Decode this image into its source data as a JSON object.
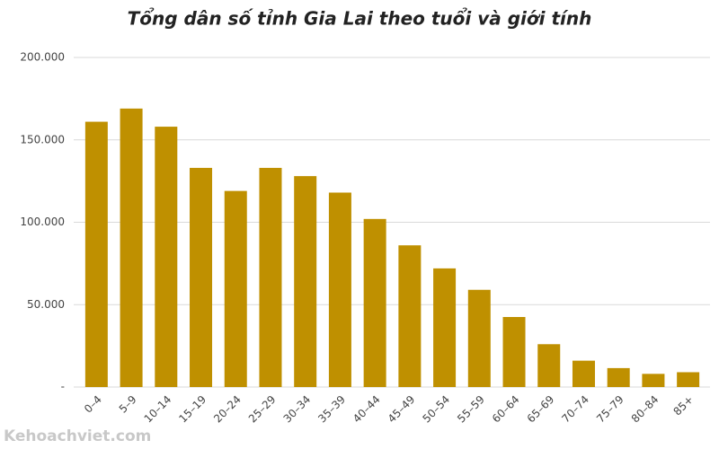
{
  "chart_data": {
    "type": "bar",
    "title": "Tổng dân số tỉnh Gia Lai theo tuổi và giới tính",
    "categories": [
      "0–4",
      "5–9",
      "10–14",
      "15–19",
      "20–24",
      "25–29",
      "30–34",
      "35–39",
      "40–44",
      "45–49",
      "50–54",
      "55–59",
      "60–64",
      "65–69",
      "70–74",
      "75–79",
      "80–84",
      "85+"
    ],
    "values": [
      161000,
      169000,
      158000,
      133000,
      119000,
      133000,
      128000,
      118000,
      102000,
      86000,
      72000,
      59000,
      42500,
      26000,
      16000,
      11500,
      8000,
      9000
    ],
    "color": "#bf9000",
    "ylim": [
      0,
      200000
    ],
    "yticks": [
      {
        "value": 0,
        "label": "-"
      },
      {
        "value": 50000,
        "label": "50.000"
      },
      {
        "value": 100000,
        "label": "100.000"
      },
      {
        "value": 150000,
        "label": "150.000"
      },
      {
        "value": 200000,
        "label": "200.000"
      }
    ],
    "grid": true,
    "watermark": "Kehoachviet.com"
  }
}
